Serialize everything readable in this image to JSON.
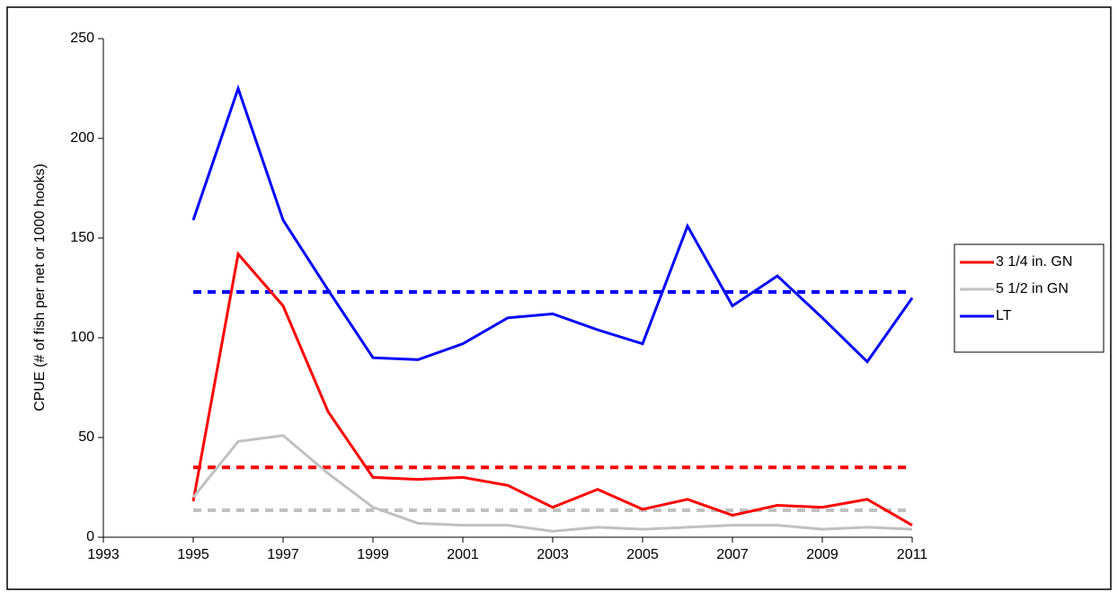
{
  "chart_data": {
    "type": "line",
    "y_label": "CPUE (# of fish per net or 1000 hooks)",
    "x": [
      1995,
      1996,
      1997,
      1998,
      1999,
      2000,
      2001,
      2002,
      2003,
      2004,
      2005,
      2006,
      2007,
      2008,
      2009,
      2010,
      2011
    ],
    "series": [
      {
        "name": "3 1/4 in. GN",
        "color": "#ff0000",
        "values": [
          18,
          142,
          116,
          63,
          30,
          29,
          30,
          26,
          15,
          24,
          14,
          19,
          11,
          16,
          15,
          19,
          6
        ]
      },
      {
        "name": "5 1/2 in GN",
        "color": "#c0c0c0",
        "values": [
          20,
          48,
          51,
          32,
          15,
          7,
          6,
          6,
          3,
          5,
          4,
          5,
          6,
          6,
          4,
          5,
          4
        ]
      },
      {
        "name": "LT",
        "color": "#0000ff",
        "values": [
          159,
          225,
          159,
          124,
          90,
          89,
          97,
          110,
          112,
          104,
          97,
          156,
          116,
          131,
          110,
          88,
          120
        ]
      }
    ],
    "reference_lines": [
      {
        "value": 35,
        "color": "#ff0000"
      },
      {
        "value": 13.5,
        "color": "#c0c0c0"
      },
      {
        "value": 123,
        "color": "#0000ff"
      }
    ],
    "xlim": [
      1993,
      2011
    ],
    "xticks": [
      1993,
      1995,
      1997,
      1999,
      2001,
      2003,
      2005,
      2007,
      2009,
      2011
    ],
    "ylim": [
      0,
      250
    ],
    "yticks": [
      0,
      50,
      100,
      150,
      200,
      250
    ],
    "grid": false,
    "legend": "right"
  }
}
